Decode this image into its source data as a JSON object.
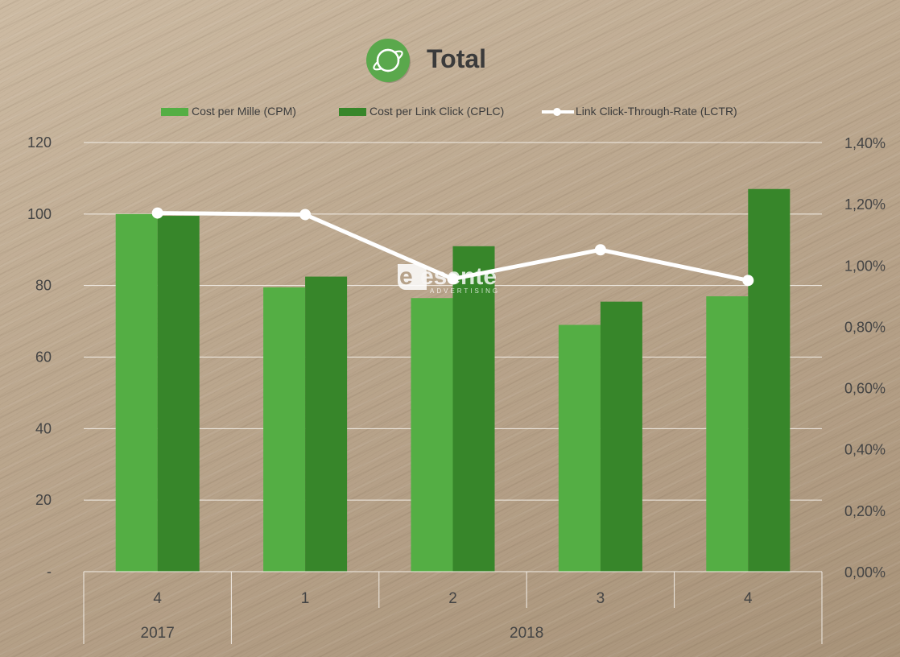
{
  "title": "Total",
  "logo_icon": "planet-ring-icon",
  "watermark": {
    "text": "esente",
    "subtext": "ADVERTISING"
  },
  "colors": {
    "cpm": "#54ae44",
    "cplc": "#37862a",
    "lctr": "#ffffff",
    "logo": "#5aa84c",
    "grid": "#f2ede6"
  },
  "legend": [
    {
      "label": "Cost per Mille (CPM)",
      "kind": "bar",
      "color": "#54ae44"
    },
    {
      "label": "Cost per Link Click (CPLC)",
      "kind": "bar",
      "color": "#37862a"
    },
    {
      "label": "Link Click-Through-Rate (LCTR)",
      "kind": "line",
      "color": "#ffffff"
    }
  ],
  "chart_data": {
    "type": "bar",
    "categories": [
      "4",
      "1",
      "2",
      "3",
      "4"
    ],
    "category_groups": [
      {
        "label": "2017",
        "span": 1
      },
      {
        "label": "2018",
        "span": 4
      }
    ],
    "series": [
      {
        "name": "Cost per Mille (CPM)",
        "type": "bar",
        "axis": "left",
        "values": [
          100,
          79.5,
          76.5,
          69,
          77
        ]
      },
      {
        "name": "Cost per Link Click (CPLC)",
        "type": "bar",
        "axis": "left",
        "values": [
          99.5,
          82.5,
          91,
          75.5,
          107
        ]
      },
      {
        "name": "Link Click-Through-Rate (LCTR)",
        "type": "line",
        "axis": "right",
        "values": [
          1.17,
          1.165,
          0.955,
          1.05,
          0.95
        ]
      }
    ],
    "y_left": {
      "ylim": [
        0,
        120
      ],
      "ticks": [
        0,
        20,
        40,
        60,
        80,
        100,
        120
      ],
      "tick_labels": [
        "-",
        "20",
        "40",
        "60",
        "80",
        "100",
        "120"
      ]
    },
    "y_right": {
      "ylim": [
        0,
        1.4
      ],
      "ticks": [
        0,
        0.2,
        0.4,
        0.6,
        0.8,
        1.0,
        1.2,
        1.4
      ],
      "tick_labels": [
        "0,00%",
        "0,20%",
        "0,40%",
        "0,60%",
        "0,80%",
        "1,00%",
        "1,20%",
        "1,40%"
      ]
    },
    "grid": true,
    "legend_position": "top-center"
  }
}
